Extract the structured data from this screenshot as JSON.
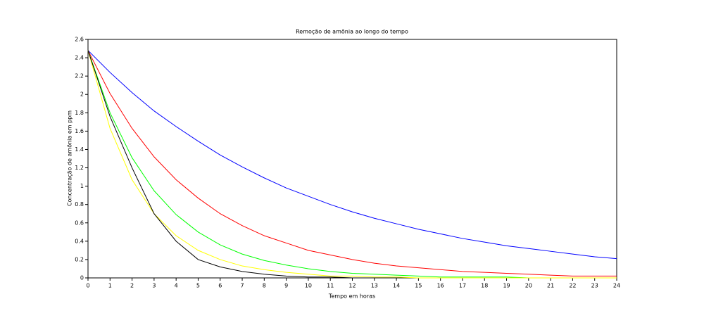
{
  "chart_data": {
    "type": "line",
    "title": "Remoção de amônia ao longo do tempo",
    "xlabel": "Tempo em horas",
    "ylabel": "Concentração de amônia em ppm",
    "x": [
      0,
      1,
      2,
      3,
      4,
      5,
      6,
      7,
      8,
      9,
      10,
      11,
      12,
      13,
      14,
      15,
      16,
      17,
      18,
      19,
      20,
      21,
      22,
      23,
      24
    ],
    "series": [
      {
        "color": "#0000ff",
        "values": [
          2.48,
          2.24,
          2.02,
          1.82,
          1.65,
          1.49,
          1.34,
          1.21,
          1.09,
          0.98,
          0.89,
          0.8,
          0.72,
          0.65,
          0.59,
          0.53,
          0.48,
          0.43,
          0.39,
          0.35,
          0.32,
          0.29,
          0.26,
          0.23,
          0.21
        ]
      },
      {
        "color": "#ff0000",
        "values": [
          2.48,
          2.01,
          1.63,
          1.32,
          1.07,
          0.87,
          0.7,
          0.57,
          0.46,
          0.38,
          0.3,
          0.25,
          0.2,
          0.16,
          0.13,
          0.11,
          0.09,
          0.07,
          0.06,
          0.05,
          0.04,
          0.03,
          0.02,
          0.02,
          0.02
        ]
      },
      {
        "color": "#00ff00",
        "values": [
          2.48,
          1.8,
          1.31,
          0.95,
          0.69,
          0.5,
          0.36,
          0.26,
          0.19,
          0.14,
          0.1,
          0.07,
          0.05,
          0.04,
          0.03,
          0.02,
          0.01,
          0.01,
          0.01,
          0.01,
          0,
          0,
          0,
          0,
          0
        ]
      },
      {
        "color": "#ffff00",
        "values": [
          2.48,
          1.63,
          1.07,
          0.7,
          0.46,
          0.3,
          0.2,
          0.13,
          0.09,
          0.06,
          0.04,
          0.02,
          0.02,
          0.01,
          0.01,
          0,
          0,
          0,
          0,
          0,
          0,
          0,
          0,
          0,
          0
        ]
      },
      {
        "color": "#000000",
        "values": [
          2.48,
          1.76,
          1.2,
          0.7,
          0.4,
          0.2,
          0.12,
          0.07,
          0.04,
          0.02,
          0.01,
          0.01,
          0,
          null,
          null,
          null,
          null,
          null,
          null,
          null,
          null,
          null,
          null,
          null,
          null
        ]
      }
    ],
    "xlim": [
      0,
      24
    ],
    "ylim": [
      0,
      2.6
    ],
    "xticks": [
      0,
      1,
      2,
      3,
      4,
      5,
      6,
      7,
      8,
      9,
      10,
      11,
      12,
      13,
      14,
      15,
      16,
      17,
      18,
      19,
      20,
      21,
      22,
      23,
      24
    ],
    "yticks": [
      0,
      0.2,
      0.4,
      0.6,
      0.8,
      1,
      1.2,
      1.4,
      1.6,
      1.8,
      2,
      2.2,
      2.4,
      2.6
    ],
    "grid": false
  }
}
